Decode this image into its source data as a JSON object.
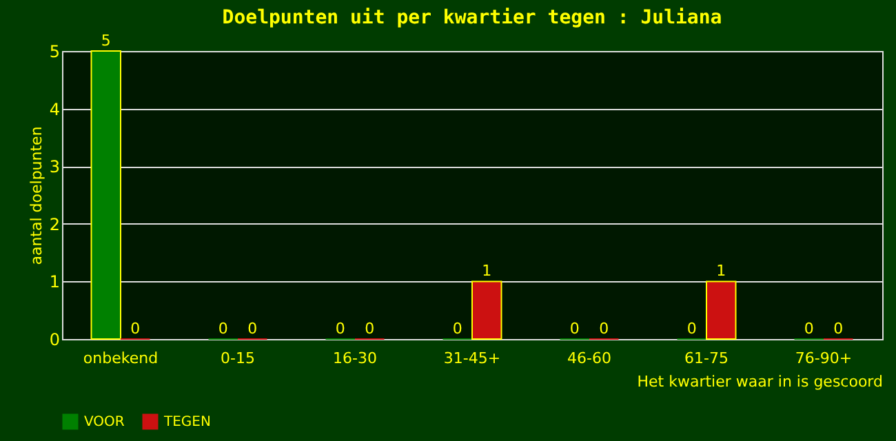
{
  "chart_data": {
    "type": "bar",
    "title": "Doelpunten uit per kwartier tegen : Juliana",
    "xlabel": "Het kwartier waar in is gescoord",
    "ylabel": "aantal doelpunten",
    "categories": [
      "onbekend",
      "0-15",
      "16-30",
      "31-45+",
      "46-60",
      "61-75",
      "76-90+"
    ],
    "series": [
      {
        "name": "VOOR",
        "color": "#008000",
        "values": [
          5,
          0,
          0,
          0,
          0,
          0,
          0
        ]
      },
      {
        "name": "TEGEN",
        "color": "#cc1111",
        "values": [
          0,
          0,
          0,
          1,
          0,
          1,
          0
        ]
      }
    ],
    "ylim": [
      0,
      5
    ],
    "yticks": [
      0,
      1,
      2,
      3,
      4,
      5
    ],
    "grid": "y",
    "legend": "bottom",
    "data_labels": true
  }
}
